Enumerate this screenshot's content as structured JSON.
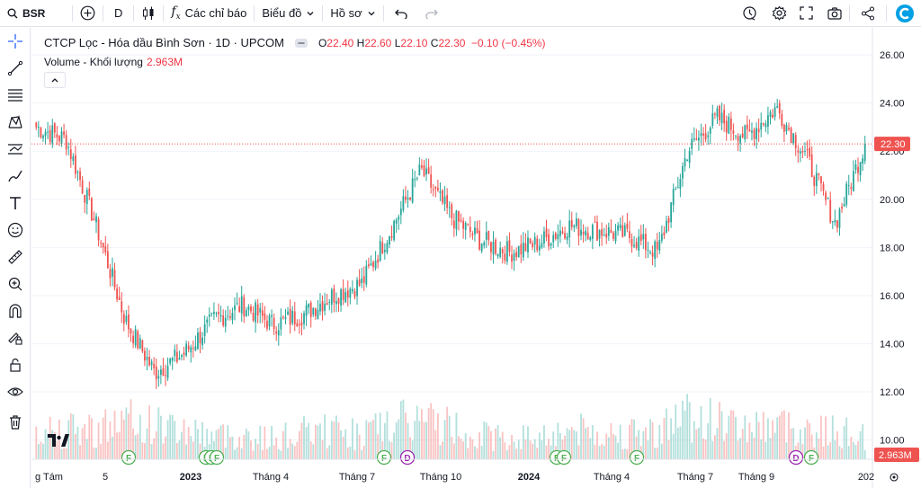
{
  "toolbar": {
    "symbol": "BSR",
    "interval": "D",
    "indicators_label": "Các chỉ báo",
    "chart_type_label": "Biểu đồ",
    "profile_label": "Hồ sơ"
  },
  "legend": {
    "title": "CTCP Lọc - Hóa dầu Bình Sơn · 1D · UPCOM",
    "open_label": "O",
    "open": "22.40",
    "high_label": "H",
    "high": "22.60",
    "low_label": "L",
    "low": "22.10",
    "close_label": "C",
    "close": "22.30",
    "change": "−0.10 (−0.45%)",
    "volume_label": "Volume - Khối lượng",
    "volume_value": "2.963M"
  },
  "price_axis": {
    "ticks": [
      "26.00",
      "24.00",
      "22.00",
      "20.00",
      "18.00",
      "16.00",
      "14.00",
      "12.00",
      "10.00"
    ],
    "last_price": "22.30",
    "last_volume": "2.963M"
  },
  "time_axis": {
    "labels": [
      "g Tám",
      "5",
      "2023",
      "Tháng 4",
      "Tháng 7",
      "Tháng 10",
      "2024",
      "Tháng 4",
      "Tháng 7",
      "Tháng 9",
      "202"
    ]
  },
  "event_markers": [
    "F",
    "F",
    "F",
    "F",
    "F",
    "D",
    "F",
    "F",
    "F",
    "D",
    "F"
  ],
  "colors": {
    "up": "#26a69a",
    "down": "#ef5350",
    "accent": "#2962ff"
  },
  "chart_data": {
    "type": "candlestick",
    "ylim": [
      9.2,
      26.6
    ],
    "x": [
      "2022-08",
      "2022-09",
      "2022-10",
      "2022-11",
      "2022-12",
      "2023-01",
      "2023-02",
      "2023-03",
      "2023-04",
      "2023-05",
      "2023-06",
      "2023-07",
      "2023-08",
      "2023-09",
      "2023-10",
      "2023-11",
      "2023-12",
      "2024-01",
      "2024-02",
      "2024-03",
      "2024-04",
      "2024-05",
      "2024-06",
      "2024-07",
      "2024-08",
      "2024-09",
      "2024-10",
      "2024-11",
      "2024-12"
    ],
    "close": [
      23.0,
      22.5,
      19.0,
      15.0,
      12.8,
      13.6,
      15.0,
      15.6,
      14.8,
      15.2,
      16.0,
      16.5,
      18.8,
      21.2,
      19.3,
      18.3,
      17.8,
      18.2,
      18.9,
      18.7,
      18.5,
      17.8,
      22.0,
      23.4,
      22.6,
      23.8,
      21.8,
      19.0,
      22.3
    ],
    "volume_m": [
      4.0,
      3.5,
      3.8,
      4.5,
      4.2,
      3.6,
      3.0,
      2.8,
      2.5,
      3.2,
      3.5,
      3.0,
      4.2,
      4.8,
      4.0,
      3.0,
      2.5,
      2.8,
      3.5,
      3.2,
      3.0,
      3.4,
      5.5,
      4.5,
      3.8,
      4.2,
      3.5,
      3.2,
      2.963
    ]
  }
}
